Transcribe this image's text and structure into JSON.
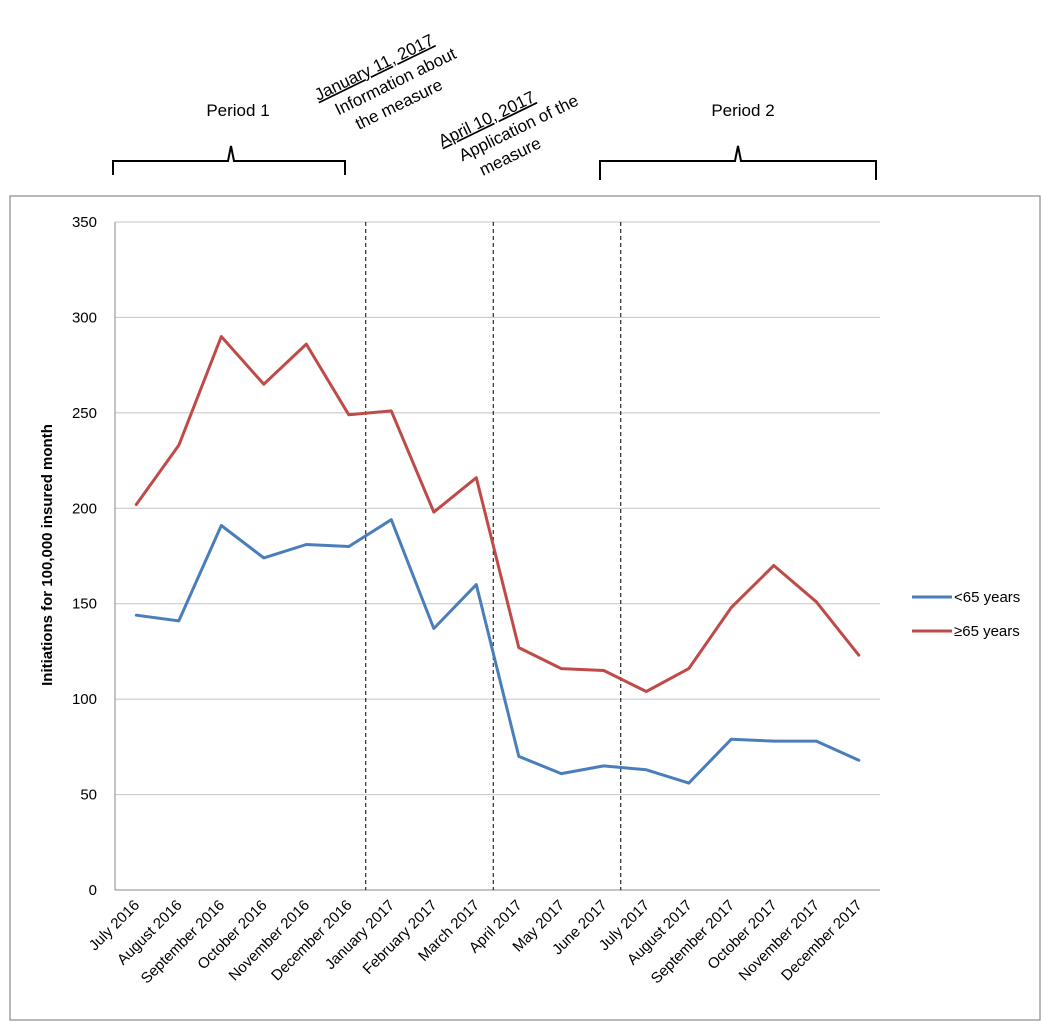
{
  "colors": {
    "under_65": "#4a7ebb",
    "over_65": "#be4b48"
  },
  "chart_data": {
    "type": "line",
    "title": "",
    "xlabel": "",
    "ylabel": "Initiations for 100,000 insured month",
    "ylim": [
      0,
      350
    ],
    "y_ticks": [
      "0",
      "50",
      "100",
      "150",
      "200",
      "250",
      "300",
      "350"
    ],
    "grid": true,
    "legend_placement": "right",
    "categories": [
      "July 2016",
      "August 2016",
      "September 2016",
      "October 2016",
      "November 2016",
      "December 2016",
      "January 2017",
      "February 2017",
      "March 2017",
      "April 2017",
      "May 2017",
      "June 2017",
      "July 2017",
      "August 2017",
      "September 2017",
      "October 2017",
      "November 2017",
      "December 2017"
    ],
    "series": [
      {
        "name": "<65 years",
        "color": "#4a7ebb",
        "values": [
          144,
          141,
          191,
          174,
          181,
          180,
          194,
          137,
          160,
          70,
          61,
          65,
          63,
          56,
          79,
          78,
          78,
          68
        ]
      },
      {
        "name": "≥65 years",
        "color": "#be4b48",
        "values": [
          202,
          233,
          290,
          265,
          286,
          249,
          251,
          198,
          216,
          127,
          116,
          115,
          104,
          116,
          148,
          170,
          151,
          123
        ]
      }
    ],
    "annotations": {
      "event_1": {
        "date": "January 11, 2017",
        "text_lines": [
          "Information about",
          "the measure"
        ]
      },
      "event_2": {
        "date": "April 10, 2017",
        "text_lines": [
          "Application of the",
          "measure"
        ]
      },
      "period_1": "Period 1",
      "period_2": "Period 2"
    }
  }
}
